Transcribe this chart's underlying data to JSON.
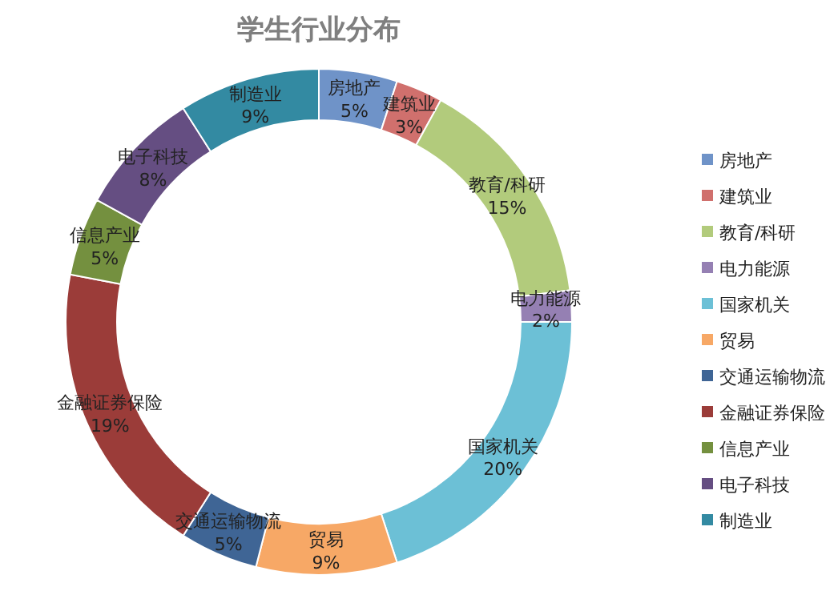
{
  "chart_data": {
    "type": "donut",
    "title": "学生行业分布",
    "categories": [
      "房地产",
      "建筑业",
      "教育/科研",
      "电力能源",
      "国家机关",
      "贸易",
      "交通运输物流",
      "金融证券保险",
      "信息产业",
      "电子科技",
      "制造业"
    ],
    "values": [
      5,
      3,
      15,
      2,
      20,
      9,
      5,
      19,
      5,
      8,
      9
    ],
    "colors": [
      "#6f93c8",
      "#d0706d",
      "#b2cb7c",
      "#9580b3",
      "#6cc0d6",
      "#f7a866",
      "#3f6595",
      "#9b3c39",
      "#74903f",
      "#654e82",
      "#338aa2"
    ],
    "value_labels": [
      "5%",
      "3%",
      "15%",
      "2%",
      "20%",
      "9%",
      "5%",
      "19%",
      "5%",
      "8%",
      "9%"
    ],
    "legend": "right"
  }
}
